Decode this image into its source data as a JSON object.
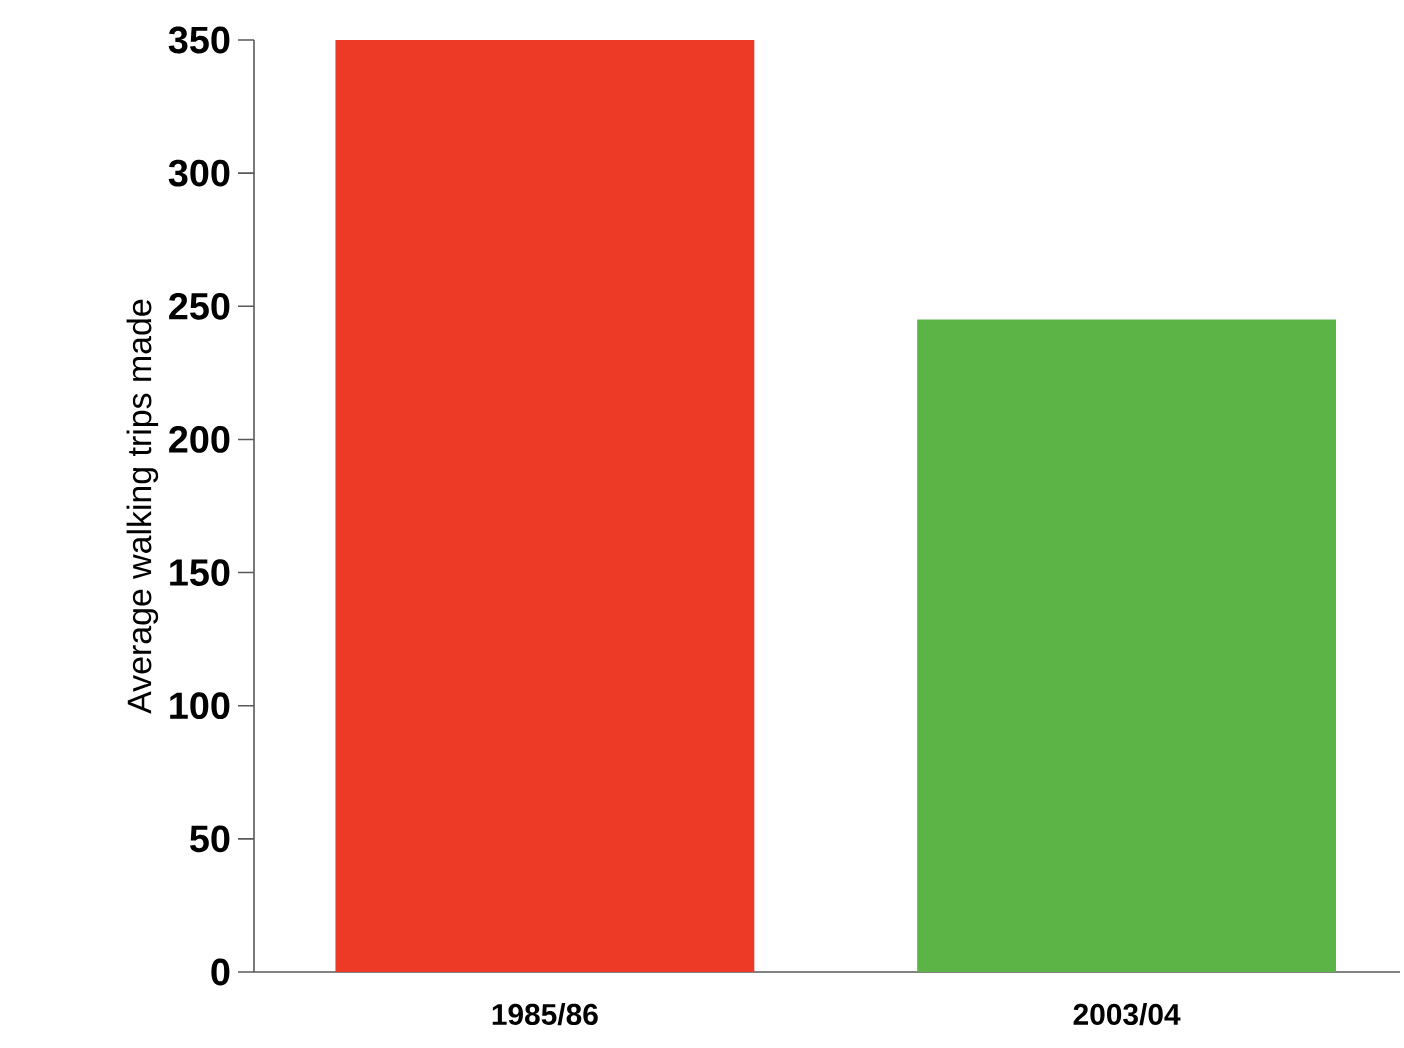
{
  "chart_data": {
    "type": "bar",
    "ylabel": "Average walking trips made",
    "categories": [
      "1985/86",
      "2003/04"
    ],
    "values": [
      350,
      245
    ],
    "colors": [
      "#ec3a27",
      "#5cb446"
    ],
    "ylim": [
      0,
      350
    ],
    "yticks": [
      0,
      50,
      100,
      150,
      200,
      250,
      300,
      350
    ],
    "grid": false
  }
}
